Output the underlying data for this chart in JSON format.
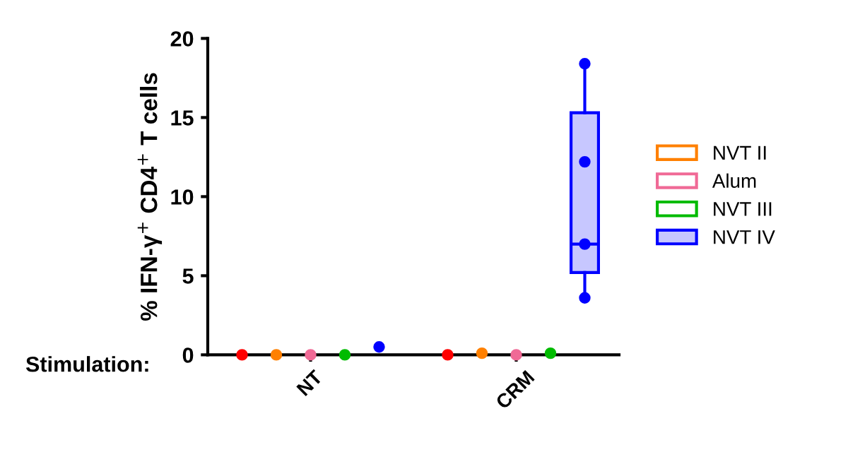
{
  "chart_data": {
    "type": "scatter",
    "ylabel": "% IFN-γ$^{+}$ CD4$^{+}$ T cells",
    "xlabel": "Stimulation:",
    "categories": [
      null,
      null,
      "NT",
      null,
      null,
      null,
      null,
      null,
      "CRM",
      null,
      null
    ],
    "series": [
      {
        "color": "#ff0000",
        "values": [
          0,
          null,
          null,
          null,
          null,
          null,
          0,
          null,
          null,
          null,
          null
        ]
      },
      {
        "name": "NVT II",
        "color": "#ff8000",
        "values": [
          null,
          0,
          null,
          null,
          null,
          null,
          null,
          0.1,
          null,
          null,
          null
        ]
      },
      {
        "name": "Alum",
        "color": "#f06a96",
        "values": [
          null,
          null,
          0,
          null,
          null,
          null,
          null,
          null,
          0,
          null,
          null
        ]
      },
      {
        "name": "NVT III",
        "color": "#00bb00",
        "values": [
          null,
          null,
          null,
          0,
          null,
          null,
          null,
          null,
          null,
          0.1,
          null
        ]
      },
      {
        "name": "NVT IV",
        "type": "box",
        "color": "#0000ff",
        "boxes": [
          null,
          null,
          null,
          null,
          null,
          null,
          null,
          null,
          null,
          null,
          {
            "low": 3.6,
            "q1": 5.2,
            "median": 7.0,
            "q3": 15.3,
            "high": 18.4
          }
        ]
      },
      {
        "color": "#0000ff",
        "values": [
          null,
          null,
          null,
          null,
          0.5,
          null,
          null,
          null,
          null,
          null,
          18.4
        ]
      },
      {
        "color": "#0000ff",
        "values": [
          null,
          null,
          null,
          null,
          null,
          null,
          null,
          null,
          null,
          null,
          12.2
        ]
      },
      {
        "color": "#0000ff",
        "values": [
          null,
          null,
          null,
          null,
          null,
          null,
          null,
          null,
          null,
          null,
          7.0
        ]
      },
      {
        "color": "#0000ff",
        "values": [
          null,
          null,
          null,
          null,
          null,
          null,
          null,
          null,
          null,
          null,
          3.6
        ]
      }
    ],
    "ylim": [
      0,
      20
    ],
    "yticks": [
      0,
      5,
      10,
      15,
      20
    ],
    "legend": "right",
    "marker": "circle",
    "grid": false
  }
}
